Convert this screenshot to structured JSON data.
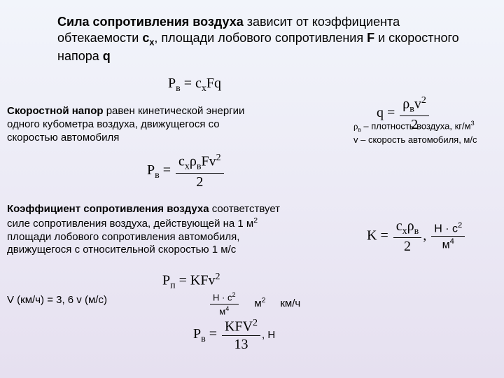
{
  "heading": {
    "part1_bold": "Сила сопротивления воздуха",
    "part2": " зависит от коэффициента обтекаемости ",
    "cx_bold": "с",
    "cx_sub": "х",
    "part3": ", площади лобового сопротивления ",
    "F_bold": "F",
    "part4": " и скоростного напора ",
    "q_bold": "q"
  },
  "formula1": {
    "lhs": "P",
    "lhs_sub": "в",
    "eq": " = c",
    "c_sub": "x",
    "tail": "Fq"
  },
  "para1": {
    "lead_bold": "Скоростной напор",
    "rest": " равен кинетической энергии одного кубометра воздуха, движущегося со скоростью автомобиля"
  },
  "legend": {
    "rho": "ρ",
    "rho_sub": "в",
    "rho_text": " – плотность воздуха, кг/м",
    "rho_sup": "3",
    "v_line": "v – скорость автомобиля, м/с"
  },
  "formula_q": {
    "lhs": "q = ",
    "num1": "ρ",
    "num1_sub": "в",
    "num2": "v",
    "num2_sup": "2",
    "den": "2"
  },
  "formula_pv": {
    "lhs": "P",
    "lhs_sub": "в",
    "eq": " = ",
    "num1": "c",
    "num1_sub": "x",
    "num2": "ρ",
    "num2_sub": "в",
    "num3": "Fv",
    "num3_sup": "2",
    "den": "2"
  },
  "para2": {
    "lead_bold": "Коэффициент сопротивления воздуха",
    "rest1": " соответствует силе сопротивления воздуха, действующей на 1 м",
    "sup1": "2",
    "rest2": " площади лобового сопротивления автомобиля, движущегося с относительной скоростью 1 м/с"
  },
  "formula_K": {
    "lhs": "K = ",
    "num1": "c",
    "num1_sub": "x",
    "num2": "ρ",
    "num2_sub": "в",
    "den": "2",
    "comma": ", ",
    "unit_num": "H · c",
    "unit_num_sup": "2",
    "unit_den": "м",
    "unit_den_sup": "4"
  },
  "formula_pv2": {
    "lhs": "P",
    "lhs_sub": "п",
    "eq": " = KFv",
    "sup": "2"
  },
  "para3": {
    "text": "V (км/ч) = 3, 6 v (м/с)"
  },
  "formula_units": {
    "num": "H · c",
    "num_sup": "2",
    "den": "м",
    "den_sup": "4",
    "m2": "м",
    "m2_sup": "2",
    "kmh": "км/ч"
  },
  "formula_kfv13": {
    "lhs": "P",
    "lhs_sub": "в",
    "eq": " = ",
    "num": "KFV",
    "num_sup": "2",
    "den": "13",
    "tail": ", H"
  }
}
